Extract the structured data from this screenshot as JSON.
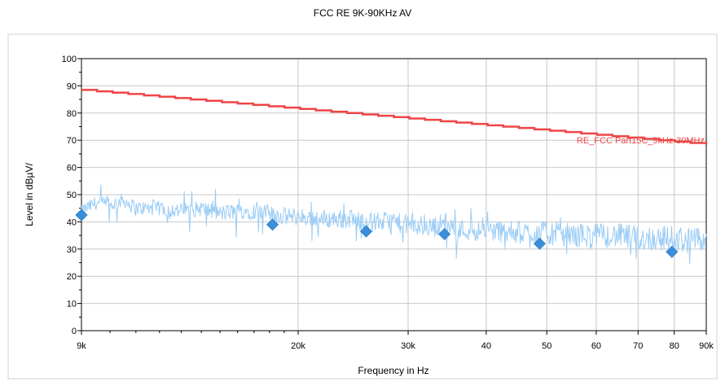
{
  "chart_data": {
    "type": "line",
    "title": "FCC RE 9K-90KHz  AV",
    "xlabel": "Frequency in Hz",
    "ylabel": "Level in dBµV/",
    "xscale": "log",
    "xlim": [
      9000,
      90000
    ],
    "ylim": [
      0,
      100
    ],
    "x_ticks": [
      {
        "value": 9000,
        "label": "9k"
      },
      {
        "value": 20000,
        "label": "20k"
      },
      {
        "value": 30000,
        "label": "30k"
      },
      {
        "value": 40000,
        "label": "40"
      },
      {
        "value": 50000,
        "label": "50"
      },
      {
        "value": 60000,
        "label": "60"
      },
      {
        "value": 70000,
        "label": "70"
      },
      {
        "value": 80000,
        "label": "80"
      },
      {
        "value": 90000,
        "label": "90k"
      }
    ],
    "y_ticks": [
      0,
      10,
      20,
      30,
      40,
      50,
      60,
      70,
      80,
      90,
      100
    ],
    "grid": true,
    "series": [
      {
        "name": "RE_FCC Part15C_9kHz-30MHz",
        "role": "limit",
        "color": "#f04545",
        "x": [
          9000,
          90000
        ],
        "y": [
          88.5,
          68.5
        ]
      },
      {
        "name": "",
        "role": "measurement",
        "color": "#9ccdf5",
        "x": [
          9000,
          9500,
          10000,
          10500,
          11000,
          12000,
          13000,
          14000,
          15000,
          16000,
          17000,
          18000,
          19000,
          20000,
          22000,
          24000,
          26000,
          28000,
          30000,
          33000,
          34300,
          36000,
          40000,
          45000,
          50000,
          55000,
          60000,
          65000,
          70000,
          75000,
          80000,
          85000,
          90000
        ],
        "y": [
          44,
          47,
          46,
          48,
          45,
          45,
          44,
          45,
          43,
          44,
          44,
          43,
          42,
          42,
          41,
          41,
          40,
          40,
          39,
          38,
          40,
          37,
          37,
          36,
          36,
          35,
          35,
          35,
          34,
          34,
          34,
          33,
          33
        ]
      },
      {
        "name": "",
        "role": "final-points",
        "color": "#3b8fd9",
        "marker": "diamond",
        "x": [
          9000,
          18200,
          25700,
          34300,
          48700,
          79300
        ],
        "y": [
          42.5,
          39,
          36.5,
          35.5,
          32,
          29
        ]
      }
    ]
  }
}
